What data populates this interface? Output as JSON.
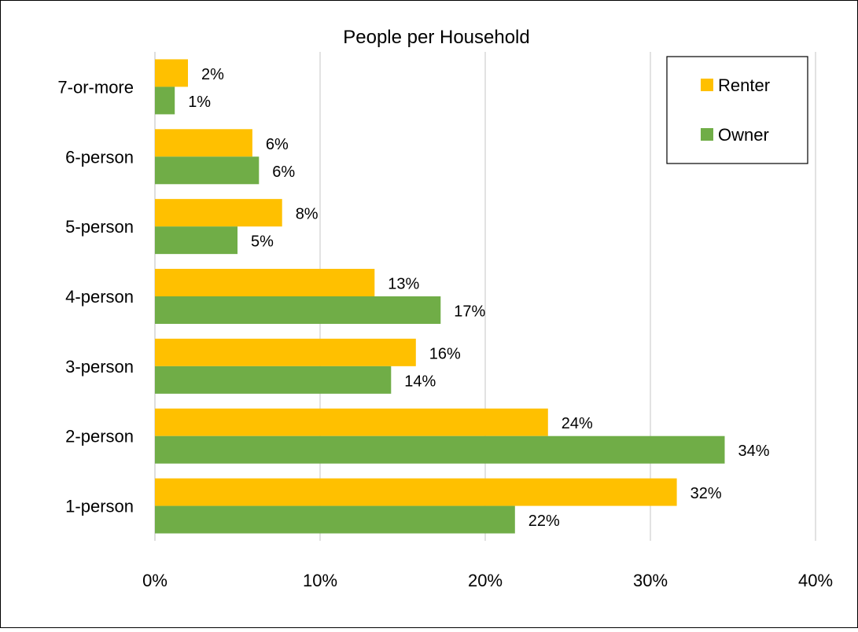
{
  "chart_data": {
    "type": "bar",
    "orientation": "horizontal",
    "title": "People per Household",
    "categories": [
      "1-person",
      "2-person",
      "3-person",
      "4-person",
      "5-person",
      "6-person",
      "7-or-more"
    ],
    "series": [
      {
        "name": "Renter",
        "color": "#FFC000",
        "values": [
          31.6,
          23.8,
          15.8,
          13.3,
          7.7,
          5.9,
          2.0
        ],
        "labels": [
          "32%",
          "24%",
          "16%",
          "13%",
          "8%",
          "6%",
          "2%"
        ]
      },
      {
        "name": "Owner",
        "color": "#70AD47",
        "values": [
          21.8,
          34.5,
          14.3,
          17.3,
          5.0,
          6.3,
          1.2
        ],
        "labels": [
          "22%",
          "34%",
          "14%",
          "17%",
          "5%",
          "6%",
          "1%"
        ]
      }
    ],
    "xlim": [
      0,
      40
    ],
    "xticks": [
      0,
      10,
      20,
      30,
      40
    ],
    "xtick_labels": [
      "0%",
      "10%",
      "20%",
      "30%",
      "40%"
    ],
    "xlabel": "",
    "ylabel": "",
    "grid": true,
    "legend_position": "top-right",
    "gridline_color": "#D9D9D9"
  }
}
